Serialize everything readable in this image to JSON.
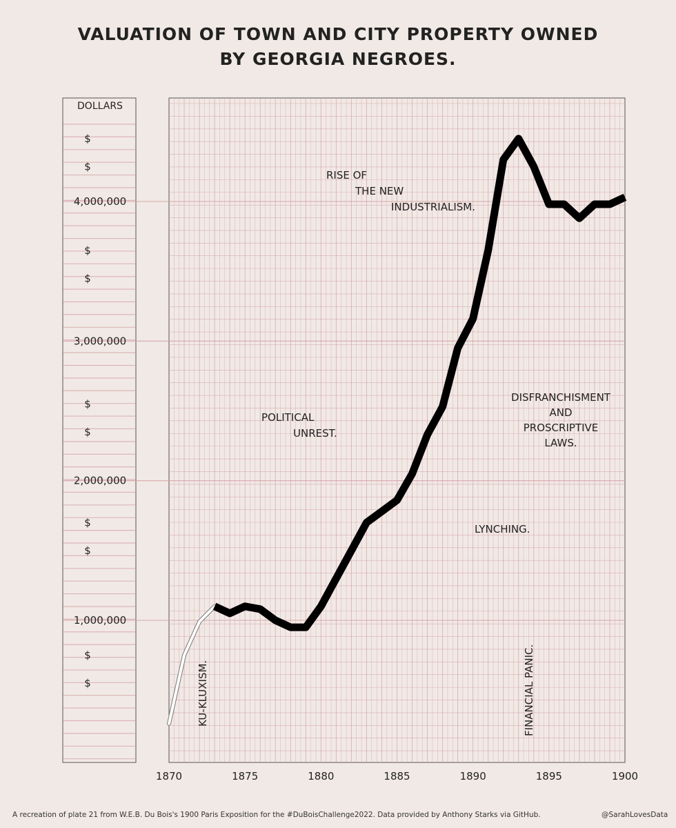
{
  "title_line1": "VALUATION OF TOWN AND CITY PROPERTY OWNED",
  "title_line2": "BY GEORGIA NEGROES.",
  "footer_credit": "A recreation of plate 21 from W.E.B. Du Bois's 1900 Paris Exposition for the #DuBoisChallenge2022. Data provided by Anthony Starks via GitHub.",
  "footer_handle": "@SarahLovesData",
  "colors": {
    "background": "#f1e9e5",
    "grid": "#d4a0a6",
    "line": "#000000"
  },
  "chart_data": {
    "type": "line",
    "title": "VALUATION OF TOWN AND CITY PROPERTY OWNED BY GEORGIA NEGROES.",
    "ylabel": "DOLLARS",
    "xlim": [
      1870,
      1900
    ],
    "x_ticks": [
      1870,
      1875,
      1880,
      1885,
      1890,
      1895,
      1900
    ],
    "y_ticks": [
      {
        "value": 1000000,
        "label": "1,000,000"
      },
      {
        "value": 2000000,
        "label": "2,000,000"
      },
      {
        "value": 3000000,
        "label": "3,000,000"
      },
      {
        "value": 4000000,
        "label": "4,000,000"
      }
    ],
    "dollar_marks": [
      "$",
      "$",
      "$",
      "$",
      "$",
      "$",
      "$",
      "$",
      "$",
      "$"
    ],
    "dollar_mark_values": [
      4450000,
      4250000,
      3650000,
      3450000,
      2550000,
      2350000,
      1700000,
      1500000,
      750000,
      550000
    ],
    "grid": true,
    "series": [
      {
        "x": [
          1870,
          1871,
          1872,
          1873,
          1874,
          1875,
          1876,
          1877,
          1878,
          1879,
          1880,
          1881,
          1882,
          1883,
          1884,
          1885,
          1886,
          1887,
          1888,
          1889,
          1890,
          1891,
          1892,
          1893,
          1894,
          1895,
          1896,
          1897,
          1898,
          1899,
          1900
        ],
        "values": [
          260000,
          750000,
          990000,
          1100000,
          1050000,
          1100000,
          1080000,
          1000000,
          950000,
          950000,
          1100000,
          1300000,
          1500000,
          1700000,
          1780000,
          1860000,
          2050000,
          2330000,
          2530000,
          2950000,
          3160000,
          3650000,
          4300000,
          4450000,
          4250000,
          3980000,
          3980000,
          3880000,
          3980000,
          3980000,
          4030000
        ]
      }
    ],
    "annotations": [
      "RISE OF",
      "THE NEW",
      "INDUSTRIALISM.",
      "POLITICAL",
      "UNREST.",
      "DISFRANCHISMENT",
      "AND",
      "PROSCRIPTIVE",
      "LAWS.",
      "LYNCHING.",
      "KU-KLUXISM.",
      "FINANCIAL PANIC."
    ]
  }
}
